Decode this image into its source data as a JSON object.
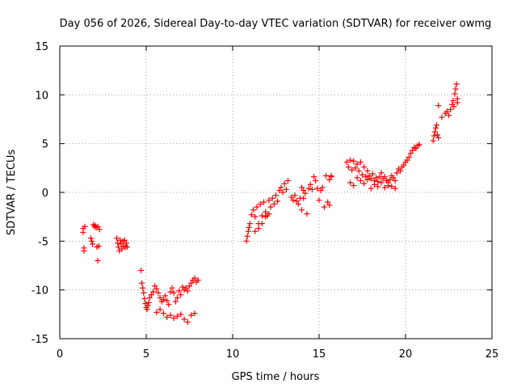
{
  "chart_data": {
    "type": "scatter",
    "title": "Day 056 of 2026, Sidereal Day-to-day VTEC variation (SDTVAR) for receiver owmg",
    "xlabel": "GPS time / hours",
    "ylabel": "SDTVAR / TECUs",
    "xlim": [
      0,
      25
    ],
    "ylim": [
      -15,
      15
    ],
    "x_ticks": [
      0,
      5,
      10,
      15,
      20,
      25
    ],
    "y_ticks": [
      -15,
      -10,
      -5,
      0,
      5,
      10,
      15
    ],
    "x_tick_labels": [
      "0",
      "5",
      "10",
      "15",
      "20",
      "25"
    ],
    "y_tick_labels": [
      "-15",
      "-10",
      "-5",
      "0",
      "5",
      "10",
      "15"
    ],
    "grid": true,
    "marker": "+",
    "color": "#ff0000",
    "series": [
      {
        "name": "SDTVAR",
        "x": [
          1.35,
          1.35,
          1.4,
          1.4,
          1.45,
          1.8,
          1.85,
          1.9,
          1.95,
          2.0,
          2.05,
          2.1,
          2.15,
          2.2,
          2.2,
          2.25,
          2.3,
          3.3,
          3.35,
          3.4,
          3.45,
          3.5,
          3.55,
          3.6,
          3.65,
          3.7,
          3.75,
          3.8,
          3.85,
          3.9,
          4.7,
          4.75,
          4.8,
          4.85,
          4.9,
          4.95,
          5.0,
          5.05,
          5.1,
          5.15,
          5.2,
          5.3,
          5.4,
          5.5,
          5.6,
          5.7,
          5.8,
          5.9,
          6.0,
          6.1,
          6.2,
          6.3,
          6.4,
          6.5,
          6.6,
          6.7,
          6.8,
          6.9,
          7.0,
          7.1,
          7.2,
          7.3,
          7.4,
          7.5,
          7.6,
          7.7,
          7.8,
          7.9,
          8.0,
          5.6,
          5.8,
          6.0,
          6.2,
          6.4,
          6.6,
          6.8,
          7.0,
          7.2,
          7.4,
          7.6,
          7.8,
          10.8,
          10.85,
          10.9,
          10.95,
          11.0,
          11.1,
          11.2,
          11.3,
          11.4,
          11.5,
          11.6,
          11.7,
          11.8,
          11.9,
          12.0,
          12.1,
          12.2,
          12.3,
          12.4,
          12.5,
          12.6,
          12.7,
          12.8,
          12.9,
          13.0,
          13.1,
          13.2,
          11.3,
          11.5,
          11.7,
          11.9,
          12.1,
          13.4,
          13.5,
          13.6,
          13.7,
          13.8,
          13.9,
          14.0,
          14.1,
          14.2,
          14.3,
          14.4,
          14.5,
          14.6,
          14.7,
          14.8,
          14.9,
          15.0,
          15.1,
          15.2,
          15.3,
          15.4,
          15.5,
          15.6,
          15.7,
          14.0,
          14.1,
          15.6,
          15.7,
          16.6,
          16.7,
          16.8,
          16.9,
          17.0,
          17.1,
          17.2,
          17.3,
          17.4,
          17.5,
          17.6,
          17.7,
          17.8,
          17.9,
          18.0,
          18.1,
          18.2,
          18.3,
          18.4,
          18.5,
          18.6,
          18.7,
          18.8,
          18.9,
          19.0,
          19.1,
          19.2,
          19.3,
          19.4,
          19.5,
          19.6,
          19.7,
          19.8,
          19.9,
          20.0,
          20.1,
          20.2,
          20.3,
          20.4,
          20.5,
          20.6,
          20.7,
          20.8,
          16.8,
          17.0,
          17.2,
          17.4,
          17.6,
          17.8,
          18.0,
          18.2,
          18.4,
          18.6,
          18.8,
          19.0,
          19.2,
          19.4,
          21.6,
          21.65,
          21.7,
          21.75,
          21.8,
          21.85,
          21.9,
          22.1,
          22.3,
          22.4,
          22.5,
          22.6,
          22.7,
          22.75,
          22.8,
          22.85,
          22.9,
          22.95,
          23.0,
          23.0,
          21.9
        ],
        "y": [
          -3.7,
          -4.1,
          -5.7,
          -6.0,
          -3.5,
          -4.7,
          -5.0,
          -5.3,
          -3.3,
          -3.5,
          -3.4,
          -3.6,
          -5.6,
          -3.5,
          -7.0,
          -5.5,
          -3.8,
          -4.7,
          -5.2,
          -5.6,
          -6.0,
          -4.9,
          -5.3,
          -5.8,
          -5.0,
          -5.5,
          -4.9,
          -5.6,
          -5.2,
          -5.6,
          -8.0,
          -9.3,
          -9.8,
          -10.3,
          -10.9,
          -11.4,
          -11.8,
          -12.0,
          -11.6,
          -11.3,
          -10.8,
          -10.5,
          -10.2,
          -9.6,
          -9.9,
          -10.3,
          -10.8,
          -11.2,
          -11.0,
          -10.6,
          -11.1,
          -11.5,
          -10.2,
          -9.8,
          -10.3,
          -11.2,
          -10.8,
          -10.1,
          -10.5,
          -9.7,
          -10.0,
          -9.8,
          -10.1,
          -9.6,
          -9.3,
          -9.0,
          -8.8,
          -9.2,
          -9.0,
          -12.3,
          -12.0,
          -12.4,
          -12.8,
          -12.6,
          -12.9,
          -12.7,
          -12.5,
          -13.0,
          -13.3,
          -12.6,
          -12.4,
          -5.0,
          -4.5,
          -4.0,
          -3.6,
          -3.2,
          -2.3,
          -1.8,
          -2.5,
          -1.5,
          -3.2,
          -1.2,
          -2.4,
          -1.0,
          -2.0,
          -2.4,
          -0.8,
          -1.5,
          -0.6,
          -1.2,
          -0.3,
          -0.9,
          0.2,
          0.5,
          0.0,
          0.9,
          0.3,
          1.2,
          -4.0,
          -3.7,
          -3.2,
          -2.5,
          -2.2,
          -0.5,
          -0.8,
          -0.3,
          -0.9,
          -1.2,
          -0.6,
          0.5,
          0.2,
          -0.1,
          -2.2,
          0.4,
          0.8,
          0.3,
          1.6,
          1.2,
          0.4,
          -0.8,
          0.2,
          0.5,
          -1.5,
          1.7,
          -1.0,
          1.3,
          1.6,
          -1.8,
          -0.6,
          -1.3,
          1.7,
          3.1,
          2.6,
          3.3,
          2.3,
          3.2,
          2.5,
          2.9,
          2.2,
          3.1,
          1.8,
          2.6,
          1.6,
          2.2,
          1.7,
          1.4,
          1.9,
          1.2,
          1.5,
          1.1,
          1.6,
          2.0,
          1.4,
          1.6,
          1.2,
          1.0,
          1.3,
          1.7,
          1.5,
          1.2,
          2.0,
          2.4,
          2.2,
          2.6,
          2.8,
          3.1,
          3.3,
          3.6,
          4.0,
          4.3,
          4.6,
          4.5,
          4.8,
          4.9,
          1.0,
          0.7,
          1.5,
          1.2,
          0.9,
          1.3,
          0.4,
          0.8,
          0.6,
          1.0,
          0.5,
          0.7,
          0.6,
          0.4,
          5.3,
          5.8,
          6.2,
          6.6,
          6.9,
          5.9,
          5.6,
          7.7,
          8.1,
          8.3,
          7.9,
          8.5,
          9.0,
          9.4,
          8.8,
          10.1,
          10.6,
          11.1,
          9.6,
          9.2,
          8.9
        ]
      }
    ]
  }
}
